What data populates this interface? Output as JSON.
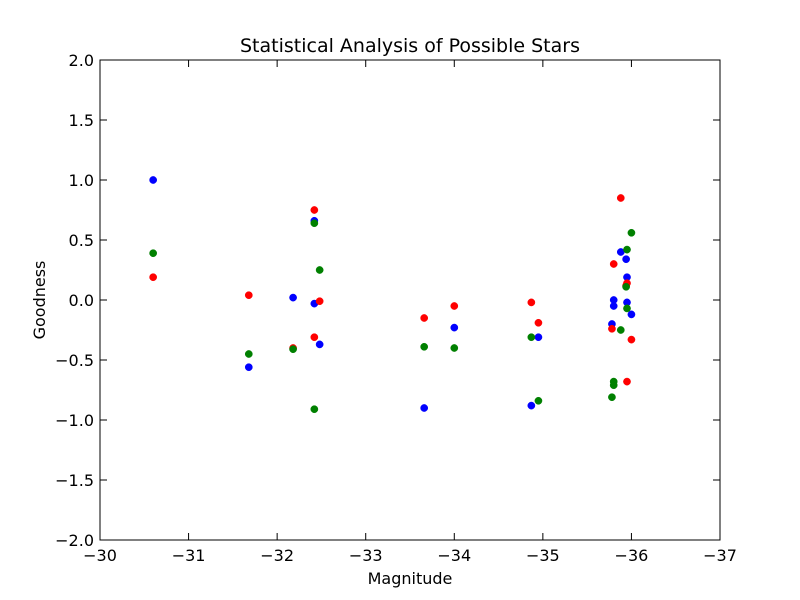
{
  "chart_data": {
    "type": "scatter",
    "title": "Statistical Analysis of Possible Stars",
    "xlabel": "Magnitude",
    "ylabel": "Goodness",
    "xlim": [
      -30,
      -37
    ],
    "ylim": [
      -2.0,
      2.0
    ],
    "x_inverted": true,
    "grid": false,
    "legend": "none",
    "x_ticks": [
      -30,
      -31,
      -32,
      -33,
      -34,
      -35,
      -36,
      -37
    ],
    "x_tick_labels": [
      "−30",
      "−31",
      "−32",
      "−33",
      "−34",
      "−35",
      "−36",
      "−37"
    ],
    "y_ticks": [
      2.0,
      1.5,
      1.0,
      0.5,
      0.0,
      -0.5,
      -1.0,
      -1.5,
      -2.0
    ],
    "y_tick_labels": [
      "2.0",
      "1.5",
      "1.0",
      "0.5",
      "0.0",
      "−0.5",
      "−1.0",
      "−1.5",
      "−2.0"
    ],
    "series": [
      {
        "color": "#0000ff",
        "points": [
          [
            -30.6,
            1.0
          ],
          [
            -31.68,
            -0.56
          ],
          [
            -32.18,
            0.02
          ],
          [
            -32.42,
            0.66
          ],
          [
            -32.42,
            -0.03
          ],
          [
            -32.48,
            -0.37
          ],
          [
            -33.66,
            -0.9
          ],
          [
            -34.0,
            -0.23
          ],
          [
            -34.87,
            -0.88
          ],
          [
            -34.95,
            -0.31
          ],
          [
            -35.78,
            -0.2
          ],
          [
            -35.8,
            0.0
          ],
          [
            -35.8,
            -0.05
          ],
          [
            -35.88,
            0.4
          ],
          [
            -35.94,
            0.34
          ],
          [
            -35.95,
            0.19
          ],
          [
            -35.95,
            -0.02
          ],
          [
            -36.0,
            -0.12
          ]
        ]
      },
      {
        "color": "#ff0000",
        "points": [
          [
            -30.6,
            0.19
          ],
          [
            -31.68,
            0.04
          ],
          [
            -32.18,
            -0.4
          ],
          [
            -32.42,
            0.75
          ],
          [
            -32.42,
            -0.31
          ],
          [
            -32.48,
            -0.01
          ],
          [
            -33.66,
            -0.15
          ],
          [
            -34.0,
            -0.05
          ],
          [
            -34.87,
            -0.02
          ],
          [
            -34.95,
            -0.19
          ],
          [
            -35.78,
            -0.24
          ],
          [
            -35.8,
            0.3
          ],
          [
            -35.88,
            0.85
          ],
          [
            -35.94,
            0.12
          ],
          [
            -35.95,
            0.14
          ],
          [
            -35.95,
            -0.68
          ],
          [
            -36.0,
            -0.33
          ]
        ]
      },
      {
        "color": "#008000",
        "points": [
          [
            -30.6,
            0.39
          ],
          [
            -31.68,
            -0.45
          ],
          [
            -32.18,
            -0.41
          ],
          [
            -32.42,
            0.64
          ],
          [
            -32.42,
            -0.91
          ],
          [
            -32.48,
            0.25
          ],
          [
            -33.66,
            -0.39
          ],
          [
            -34.0,
            -0.4
          ],
          [
            -34.87,
            -0.31
          ],
          [
            -34.95,
            -0.84
          ],
          [
            -35.78,
            -0.81
          ],
          [
            -35.8,
            -0.68
          ],
          [
            -35.8,
            -0.71
          ],
          [
            -35.88,
            -0.25
          ],
          [
            -35.94,
            0.11
          ],
          [
            -35.95,
            0.42
          ],
          [
            -35.95,
            -0.07
          ],
          [
            -36.0,
            0.56
          ]
        ]
      }
    ]
  }
}
